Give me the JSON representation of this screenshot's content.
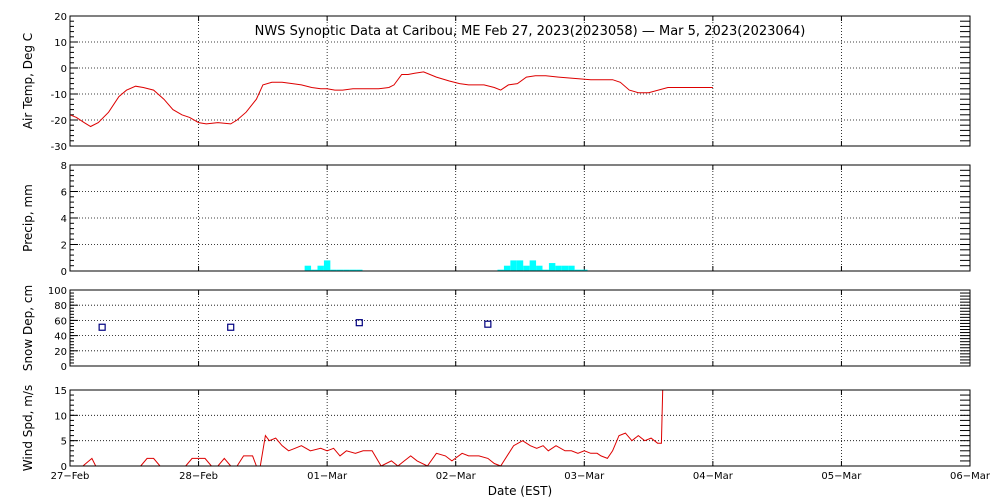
{
  "title": "NWS Synoptic Data at Caribou, ME   Feb 27, 2023(2023058) — Mar  5, 2023(2023064)",
  "xlabel": "Date (EST)",
  "x_tick_labels": [
    "27−Feb",
    "28−Feb",
    "01−Mar",
    "02−Mar",
    "03−Mar",
    "04−Mar",
    "05−Mar",
    "06−Mar"
  ],
  "colors": {
    "temp_line": "#dd0000",
    "precip_bars": "#00ffff",
    "snow_markers": "#000080",
    "wind_line": "#dd0000",
    "axes": "#000000"
  },
  "chart_data": [
    {
      "type": "line",
      "ylabel": "Air Temp, Deg C",
      "ylim": [
        -30,
        20
      ],
      "yticks": [
        20,
        10,
        0,
        -10,
        -20,
        -30
      ],
      "xlim": [
        0,
        7
      ],
      "grid": true,
      "series": [
        {
          "x": [
            0.0,
            0.05,
            0.11,
            0.16,
            0.22,
            0.3,
            0.38,
            0.44,
            0.51,
            0.57,
            0.65,
            0.73,
            0.8,
            0.87,
            0.93,
            1.0,
            1.06,
            1.15,
            1.25,
            1.3,
            1.37,
            1.45,
            1.5,
            1.57,
            1.65,
            1.73,
            1.8,
            1.88,
            1.95,
            2.0,
            2.06,
            2.12,
            2.2,
            2.3,
            2.4,
            2.48,
            2.52,
            2.58,
            2.63,
            2.68,
            2.75,
            2.85,
            2.95,
            3.03,
            3.1,
            3.17,
            3.22,
            3.3,
            3.35,
            3.41,
            3.48,
            3.55,
            3.62,
            3.7,
            3.8,
            3.92,
            4.05,
            4.15,
            4.22,
            4.28,
            4.35,
            4.42,
            4.5,
            4.65,
            4.75,
            4.8,
            5.0
          ],
          "y": [
            -18,
            -19,
            -21,
            -22.5,
            -21,
            -17,
            -11,
            -8.5,
            -7,
            -7.5,
            -8.5,
            -12,
            -16,
            -18,
            -19,
            -21,
            -21.5,
            -21,
            -21.5,
            -20,
            -17,
            -12,
            -6.5,
            -5.5,
            -5.5,
            -6,
            -6.5,
            -7.5,
            -8,
            -8,
            -8.5,
            -8.5,
            -8,
            -8,
            -8,
            -7.5,
            -6.5,
            -2.5,
            -2.5,
            -2,
            -1.5,
            -3.5,
            -5,
            -6,
            -6.5,
            -6.5,
            -6.5,
            -7.5,
            -8.5,
            -6.5,
            -6,
            -3.5,
            -3,
            -3,
            -3.5,
            -4,
            -4.5,
            -4.5,
            -4.5,
            -5.5,
            -8.5,
            -9.5,
            -9.5,
            -7.5,
            -7.5,
            -7.5,
            -7.5
          ]
        }
      ]
    },
    {
      "type": "bar",
      "ylabel": "Precip, mm",
      "ylim": [
        0,
        8
      ],
      "yticks": [
        8,
        6,
        4,
        2,
        0
      ],
      "xlim": [
        0,
        7
      ],
      "grid": true,
      "bar_width": 0.05,
      "x": [
        1.85,
        1.9,
        1.95,
        2.0,
        2.05,
        2.1,
        2.15,
        2.2,
        2.25,
        3.35,
        3.4,
        3.45,
        3.5,
        3.55,
        3.6,
        3.65,
        3.7,
        3.75,
        3.8,
        3.85,
        3.9,
        3.95,
        4.0
      ],
      "values": [
        0.4,
        0.1,
        0.4,
        0.8,
        0.1,
        0.1,
        0.1,
        0.1,
        0.1,
        0.1,
        0.4,
        0.8,
        0.8,
        0.4,
        0.8,
        0.4,
        0.1,
        0.6,
        0.4,
        0.4,
        0.4,
        0.1,
        0.1
      ]
    },
    {
      "type": "scatter",
      "ylabel": "Snow Dep, cm",
      "ylim": [
        0,
        100
      ],
      "yticks": [
        100,
        80,
        60,
        40,
        20,
        0
      ],
      "xlim": [
        0,
        7
      ],
      "grid": true,
      "x": [
        0.25,
        1.25,
        2.25,
        3.25
      ],
      "y": [
        51,
        51,
        57,
        55
      ]
    },
    {
      "type": "line",
      "ylabel": "Wind Spd, m/s",
      "ylim": [
        0,
        15
      ],
      "yticks": [
        15,
        10,
        5,
        0
      ],
      "xlim": [
        0,
        7
      ],
      "grid": true,
      "series": [
        {
          "x": [
            0.0,
            0.1,
            0.17,
            0.2,
            0.25,
            0.3,
            0.4,
            0.55,
            0.6,
            0.65,
            0.7,
            0.8,
            0.9,
            0.95,
            1.0,
            1.05,
            1.1,
            1.15,
            1.2,
            1.25,
            1.3,
            1.35,
            1.42,
            1.45,
            1.48,
            1.52,
            1.55,
            1.6,
            1.65,
            1.7,
            1.75,
            1.8,
            1.87,
            1.95,
            2.0,
            2.05,
            2.1,
            2.15,
            2.22,
            2.28,
            2.35,
            2.42,
            2.5,
            2.55,
            2.6,
            2.65,
            2.7,
            2.78,
            2.85,
            2.92,
            2.97,
            3.05,
            3.1,
            3.18,
            3.25,
            3.3,
            3.35,
            3.45,
            3.52,
            3.58,
            3.63,
            3.68,
            3.72,
            3.78,
            3.85,
            3.9,
            3.95,
            4.0,
            4.05,
            4.1,
            4.13,
            4.18,
            4.22,
            4.27,
            4.32,
            4.37,
            4.42,
            4.47,
            4.52,
            4.57,
            4.6,
            4.61
          ],
          "y": [
            0,
            0,
            1.5,
            0,
            0,
            0,
            0,
            0,
            1.5,
            1.5,
            0,
            0,
            0,
            1.5,
            1.5,
            1.5,
            0,
            0,
            1.5,
            0,
            0,
            2,
            2,
            0,
            0,
            6,
            5,
            5.5,
            4,
            3,
            3.5,
            4,
            3,
            3.5,
            3,
            3.5,
            2,
            3,
            2.5,
            3,
            3,
            0,
            1,
            0,
            1,
            2,
            1,
            0,
            2.5,
            2,
            1,
            2.5,
            2,
            2,
            1.5,
            0.5,
            0,
            4,
            5,
            4,
            3.5,
            4,
            3,
            4,
            3,
            3,
            2.5,
            3,
            2.5,
            2.5,
            2,
            1.5,
            3,
            6,
            6.5,
            5,
            6,
            5,
            5.5,
            4.5,
            4.5,
            15
          ]
        }
      ]
    }
  ]
}
